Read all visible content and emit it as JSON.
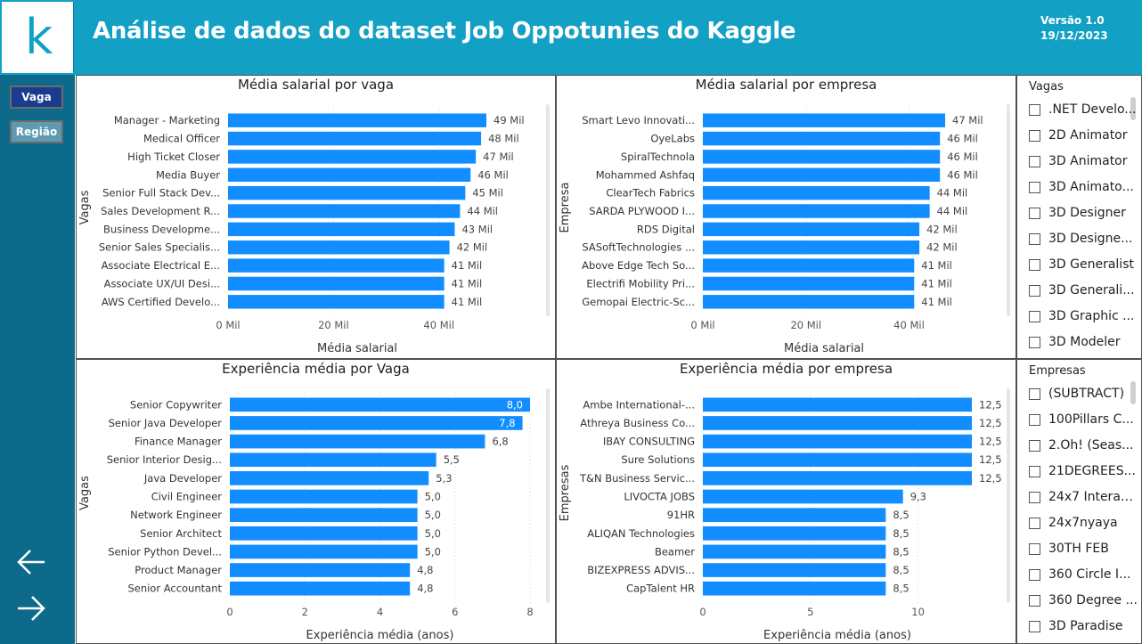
{
  "header": {
    "logo_letter": "k",
    "title": "Análise de dados do dataset Job Oppotunies do Kaggle",
    "version": "Versão 1.0",
    "date": "19/12/2023"
  },
  "nav": {
    "vaga_label": "Vaga",
    "regiao_label": "Região",
    "back_icon": "arrow-left-icon",
    "forward_icon": "arrow-right-icon"
  },
  "colors": {
    "header_bg": "#12a0c4",
    "sidebar_bg": "#0d6a8a",
    "bar": "#118dff",
    "active_nav": "#1a3c8f",
    "inactive_nav": "#5e9bb2"
  },
  "chart_data": [
    {
      "type": "bar",
      "orientation": "horizontal",
      "title": "Média salarial por vaga",
      "xlabel": "Média salarial",
      "ylabel": "Vagas",
      "xlim": [
        0,
        49000
      ],
      "ticks": [
        0,
        20000,
        40000
      ],
      "tick_labels": [
        "0 Mil",
        "20 Mil",
        "40 Mil"
      ],
      "categories": [
        "Manager - Marketing",
        "Medical Officer",
        "High Ticket Closer",
        "Media Buyer",
        "Senior Full Stack Dev...",
        "Sales Development R...",
        "Business Developme...",
        "Senior Sales Specialis...",
        "Associate Electrical E...",
        "Associate UX/UI Desi...",
        "AWS Certified Develo..."
      ],
      "values": [
        49000,
        48000,
        47000,
        46000,
        45000,
        44000,
        43000,
        42000,
        41000,
        41000,
        41000
      ],
      "value_labels": [
        "49 Mil",
        "48 Mil",
        "47 Mil",
        "46 Mil",
        "45 Mil",
        "44 Mil",
        "43 Mil",
        "42 Mil",
        "41 Mil",
        "41 Mil",
        "41 Mil"
      ],
      "label_inside": [
        false,
        false,
        false,
        false,
        false,
        false,
        false,
        false,
        false,
        false,
        false
      ]
    },
    {
      "type": "bar",
      "orientation": "horizontal",
      "title": "Média salarial por empresa",
      "xlabel": "Média salarial",
      "ylabel": "Empresa",
      "xlim": [
        0,
        47000
      ],
      "ticks": [
        0,
        20000,
        40000
      ],
      "tick_labels": [
        "0 Mil",
        "20 Mil",
        "40 Mil"
      ],
      "categories": [
        "Smart Levo Innovati...",
        "OyeLabs",
        "SpiralTechnola",
        "Mohammed Ashfaq",
        "ClearTech Fabrics",
        "SARDA PLYWOOD I...",
        "RDS Digital",
        "SASoftTechnologies ...",
        "Above Edge Tech So...",
        "Electrifi Mobility Pri...",
        "Gemopai Electric-Sc..."
      ],
      "values": [
        47000,
        46000,
        46000,
        46000,
        44000,
        44000,
        42000,
        42000,
        41000,
        41000,
        41000
      ],
      "value_labels": [
        "47 Mil",
        "46 Mil",
        "46 Mil",
        "46 Mil",
        "44 Mil",
        "44 Mil",
        "42 Mil",
        "42 Mil",
        "41 Mil",
        "41 Mil",
        "41 Mil"
      ],
      "label_inside": [
        false,
        false,
        false,
        false,
        false,
        false,
        false,
        false,
        false,
        false,
        false
      ]
    },
    {
      "type": "bar",
      "orientation": "horizontal",
      "title": "Experiência média por Vaga",
      "xlabel": "Experiência média (anos)",
      "ylabel": "Vagas",
      "xlim": [
        0,
        8
      ],
      "ticks": [
        0,
        2,
        4,
        6,
        8
      ],
      "tick_labels": [
        "0",
        "2",
        "4",
        "6",
        "8"
      ],
      "categories": [
        "Senior Copywriter",
        "Senior Java Developer",
        "Finance Manager",
        "Senior Interior Desig...",
        "Java Developer",
        "Civil Engineer",
        "Network Engineer",
        "Senior Architect",
        "Senior Python Devel...",
        "Product Manager",
        "Senior Accountant"
      ],
      "values": [
        8.0,
        7.8,
        6.8,
        5.5,
        5.3,
        5.0,
        5.0,
        5.0,
        5.0,
        4.8,
        4.8
      ],
      "value_labels": [
        "8,0",
        "7,8",
        "6,8",
        "5,5",
        "5,3",
        "5,0",
        "5,0",
        "5,0",
        "5,0",
        "4,8",
        "4,8"
      ],
      "label_inside": [
        true,
        true,
        false,
        false,
        false,
        false,
        false,
        false,
        false,
        false,
        false
      ]
    },
    {
      "type": "bar",
      "orientation": "horizontal",
      "title": "Experiência média por empresa",
      "xlabel": "Experiência média (anos)",
      "ylabel": "Empresas",
      "xlim": [
        0,
        12.5
      ],
      "ticks": [
        0,
        5,
        10
      ],
      "tick_labels": [
        "0",
        "5",
        "10"
      ],
      "categories": [
        "Ambe International-...",
        "Athreya Business Co...",
        "IBAY CONSULTING",
        "Sure Solutions",
        "T&N Business Servic...",
        "LIVOCTA JOBS",
        "91HR",
        "ALIQAN Technologies",
        "Beamer",
        "BIZEXPRESS ADVIS...",
        "CapTalent HR"
      ],
      "values": [
        12.5,
        12.5,
        12.5,
        12.5,
        12.5,
        9.3,
        8.5,
        8.5,
        8.5,
        8.5,
        8.5
      ],
      "value_labels": [
        "12,5",
        "12,5",
        "12,5",
        "12,5",
        "12,5",
        "9,3",
        "8,5",
        "8,5",
        "8,5",
        "8,5",
        "8,5"
      ],
      "label_inside": [
        false,
        false,
        false,
        false,
        false,
        false,
        false,
        false,
        false,
        false,
        false
      ]
    }
  ],
  "slicers": {
    "vagas": {
      "title": "Vagas",
      "items": [
        ".NET Develo...",
        "2D Animator",
        "3D Animator",
        "3D Animato...",
        "3D Designer",
        "3D Designe...",
        "3D Generalist",
        "3D Generali...",
        "3D Graphic ...",
        "3D Modeler"
      ]
    },
    "empresas": {
      "title": "Empresas",
      "items": [
        "(SUBTRACT)",
        "100Pillars C...",
        "2.Oh! (Seas...",
        "21DEGREES...",
        "24x7 Interac...",
        "24x7nyaya",
        "30TH FEB",
        "360 Circle I...",
        "360 Degree ...",
        "3D Paradise"
      ]
    }
  }
}
